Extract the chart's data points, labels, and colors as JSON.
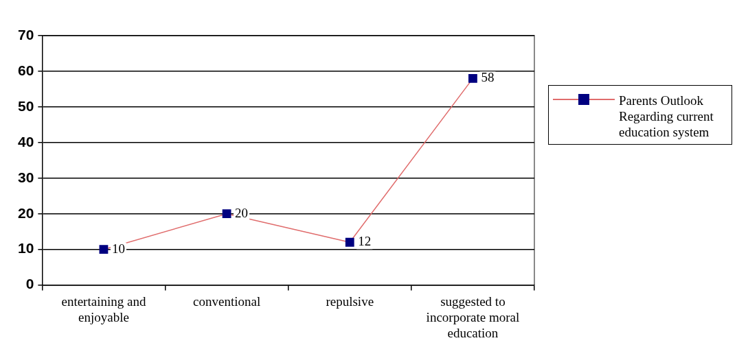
{
  "chart_data": {
    "type": "line",
    "categories": [
      "entertaining and enjoyable",
      "conventional",
      "repulsive",
      "suggested to incorporate moral education"
    ],
    "series": [
      {
        "name": "Parents Outlook Regarding current education system",
        "color": "#000080",
        "values": [
          10,
          20,
          12,
          58
        ]
      }
    ],
    "ylim": [
      0,
      70
    ],
    "yticks": [
      0,
      10,
      20,
      30,
      40,
      50,
      60,
      70
    ],
    "grid": "y",
    "legend": "right",
    "marker": "square",
    "data_labels": true
  }
}
